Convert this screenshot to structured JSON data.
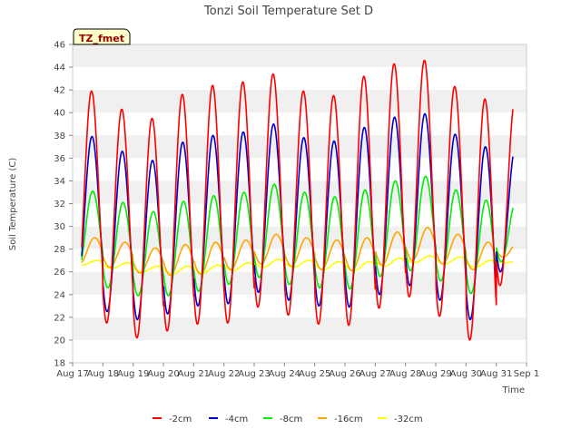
{
  "chart_data": {
    "type": "line",
    "title": "Tonzi Soil Temperature Set D",
    "xlabel": "Time",
    "ylabel": "Soil Temperature (C)",
    "ylim": [
      18,
      46
    ],
    "xlim": [
      "Aug 17",
      "Sep 1"
    ],
    "yticks": [
      18,
      20,
      22,
      24,
      26,
      28,
      30,
      32,
      34,
      36,
      38,
      40,
      42,
      44,
      46
    ],
    "xtick_labels": [
      "Aug 17",
      "Aug 18",
      "Aug 19",
      "Aug 20",
      "Aug 21",
      "Aug 22",
      "Aug 23",
      "Aug 24",
      "Aug 25",
      "Aug 26",
      "Aug 27",
      "Aug 28",
      "Aug 29",
      "Aug 30",
      "Aug 31",
      "Sep 1"
    ],
    "grid": "horizontal bands",
    "annotation": "TZ_fmet",
    "legend_position": "bottom",
    "series": [
      {
        "name": "-2cm",
        "color": "#ff0000",
        "daily_min": [
          23.0,
          21.5,
          20.2,
          20.8,
          21.4,
          21.5,
          22.9,
          22.2,
          21.4,
          21.3,
          22.8,
          23.8,
          22.1,
          20.0,
          24.8
        ],
        "daily_max": [
          41.9,
          40.3,
          39.5,
          41.6,
          42.4,
          42.7,
          43.4,
          41.9,
          41.5,
          43.2,
          44.3,
          44.6,
          42.3,
          41.2
        ]
      },
      {
        "name": "-4cm",
        "color": "#0000cc",
        "daily_min": [
          24.2,
          22.5,
          21.8,
          22.3,
          23.0,
          23.2,
          24.2,
          23.5,
          23.0,
          22.9,
          24.0,
          24.8,
          23.5,
          21.8,
          26.0
        ],
        "daily_max": [
          37.9,
          36.6,
          35.8,
          37.4,
          38.0,
          38.3,
          39.0,
          37.8,
          37.5,
          38.7,
          39.6,
          39.9,
          38.1,
          37.0
        ]
      },
      {
        "name": "-8cm",
        "color": "#00ee00",
        "daily_min": [
          25.8,
          24.6,
          23.9,
          23.9,
          24.3,
          24.9,
          25.5,
          24.9,
          24.6,
          24.5,
          25.6,
          26.1,
          25.2,
          24.1,
          26.9
        ],
        "daily_max": [
          33.1,
          32.1,
          31.3,
          32.2,
          32.7,
          33.0,
          33.7,
          33.0,
          32.6,
          33.2,
          34.0,
          34.4,
          33.2,
          32.3
        ]
      },
      {
        "name": "-16cm",
        "color": "#ffa500",
        "daily_min": [
          26.7,
          26.4,
          25.9,
          25.7,
          25.8,
          26.2,
          26.7,
          26.5,
          26.2,
          26.1,
          26.6,
          27.0,
          26.7,
          26.2,
          27.3
        ],
        "daily_max": [
          29.0,
          28.6,
          28.1,
          28.4,
          28.6,
          28.8,
          29.3,
          29.0,
          28.8,
          29.0,
          29.5,
          29.9,
          29.3,
          28.6
        ]
      },
      {
        "name": "-32cm",
        "color": "#ffff00",
        "daily_min": [
          26.6,
          26.3,
          26.0,
          25.8,
          25.9,
          26.1,
          26.4,
          26.4,
          26.2,
          26.1,
          26.5,
          26.8,
          26.7,
          26.4,
          26.8
        ],
        "daily_max": [
          27.0,
          26.8,
          26.5,
          26.5,
          26.6,
          26.8,
          27.1,
          27.0,
          26.9,
          26.9,
          27.2,
          27.4,
          27.3,
          27.0
        ]
      }
    ]
  }
}
